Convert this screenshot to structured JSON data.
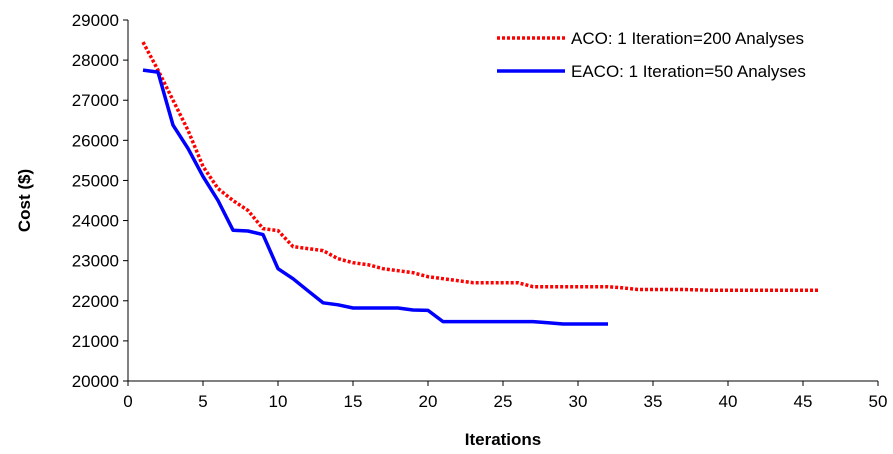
{
  "chart_data": {
    "type": "line",
    "title": "",
    "xlabel": "Iterations",
    "ylabel": "Cost ($)",
    "xlim": [
      0,
      50
    ],
    "ylim": [
      20000,
      29000
    ],
    "xticks": [
      0,
      5,
      10,
      15,
      20,
      25,
      30,
      35,
      40,
      45,
      50
    ],
    "yticks": [
      20000,
      21000,
      22000,
      23000,
      24000,
      25000,
      26000,
      27000,
      28000,
      29000
    ],
    "grid": false,
    "legend_position": "top-right",
    "series": [
      {
        "name": "ACO: 1 Iteration=200 Analyses",
        "color": "#ff0000",
        "style": "dotted",
        "x": [
          1,
          2,
          3,
          4,
          5,
          6,
          7,
          8,
          9,
          10,
          11,
          12,
          13,
          14,
          15,
          16,
          17,
          18,
          19,
          20,
          21,
          22,
          23,
          24,
          25,
          26,
          27,
          28,
          29,
          30,
          31,
          32,
          33,
          34,
          35,
          36,
          37,
          38,
          39,
          40,
          41,
          42,
          43,
          44,
          45,
          46
        ],
        "y": [
          28450,
          27750,
          27000,
          26250,
          25350,
          24800,
          24500,
          24250,
          23800,
          23750,
          23350,
          23300,
          23250,
          23050,
          22950,
          22900,
          22800,
          22750,
          22700,
          22600,
          22550,
          22500,
          22450,
          22450,
          22450,
          22450,
          22350,
          22350,
          22350,
          22350,
          22350,
          22350,
          22320,
          22280,
          22280,
          22280,
          22280,
          22270,
          22260,
          22260,
          22260,
          22260,
          22260,
          22260,
          22260,
          22260
        ]
      },
      {
        "name": "EACO: 1 Iteration=50 Analyses",
        "color": "#0000ff",
        "style": "solid",
        "x": [
          1,
          2,
          3,
          4,
          5,
          6,
          7,
          8,
          9,
          10,
          11,
          12,
          13,
          14,
          15,
          16,
          17,
          18,
          19,
          20,
          21,
          22,
          23,
          24,
          25,
          26,
          27,
          28,
          29,
          30,
          31,
          32
        ],
        "y": [
          27750,
          27700,
          26380,
          25800,
          25100,
          24500,
          23760,
          23740,
          23650,
          22800,
          22550,
          22250,
          21950,
          21900,
          21820,
          21820,
          21820,
          21820,
          21770,
          21760,
          21480,
          21480,
          21480,
          21480,
          21480,
          21480,
          21480,
          21450,
          21420,
          21420,
          21420,
          21420
        ]
      }
    ]
  }
}
